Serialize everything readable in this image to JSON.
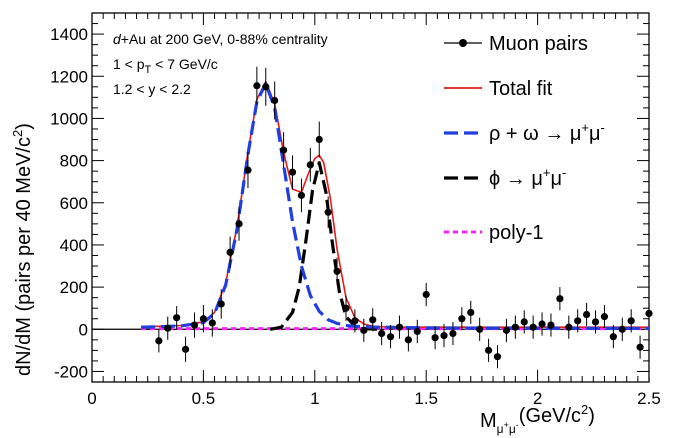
{
  "chart_data": {
    "type": "scatter",
    "title": "",
    "xlabel": "M_{μ⁺μ⁻}(GeV/c²)",
    "ylabel": "dN/dM (pairs per 40 MeV/c²)",
    "xlim": [
      0,
      2.5
    ],
    "ylim": [
      -250,
      1500
    ],
    "x_ticks": [
      "0",
      "0.5",
      "1",
      "1.5",
      "2",
      "2.5"
    ],
    "y_ticks": [
      "-200",
      "0",
      "200",
      "400",
      "600",
      "800",
      "1000",
      "1200",
      "1400"
    ],
    "annotations": {
      "line1_italic": "d",
      "line1_rest": "+Au at 200 GeV, 0-88% centrality",
      "line2_a": "1 < p",
      "line2_sub": "T",
      "line2_b": " < 7 GeV/c",
      "line3": "1.2 < y < 2.2"
    },
    "legend": {
      "placement": "top-right",
      "entries": [
        {
          "key": "data",
          "label": "Muon pairs"
        },
        {
          "key": "total",
          "label": "Total fit",
          "color": "#e41a1c"
        },
        {
          "key": "rho",
          "label": "ρ + ω → μ⁺μ⁻",
          "color": "#1f3fe0"
        },
        {
          "key": "phi",
          "label": "ϕ → μ⁺μ⁻",
          "color": "#000000"
        },
        {
          "key": "poly",
          "label": "poly-1",
          "color": "#ff22ff"
        }
      ]
    },
    "series": [
      {
        "name": "Muon pairs",
        "points": [
          {
            "x": 0.3,
            "y": -55,
            "err": 55
          },
          {
            "x": 0.34,
            "y": 5,
            "err": 55
          },
          {
            "x": 0.38,
            "y": 55,
            "err": 55
          },
          {
            "x": 0.42,
            "y": -95,
            "err": 60
          },
          {
            "x": 0.46,
            "y": 20,
            "err": 60
          },
          {
            "x": 0.5,
            "y": 50,
            "err": 65
          },
          {
            "x": 0.54,
            "y": 30,
            "err": 65
          },
          {
            "x": 0.58,
            "y": 120,
            "err": 70
          },
          {
            "x": 0.62,
            "y": 365,
            "err": 75
          },
          {
            "x": 0.66,
            "y": 500,
            "err": 80
          },
          {
            "x": 0.7,
            "y": 755,
            "err": 85
          },
          {
            "x": 0.74,
            "y": 1155,
            "err": 90
          },
          {
            "x": 0.78,
            "y": 1150,
            "err": 90
          },
          {
            "x": 0.82,
            "y": 1085,
            "err": 90
          },
          {
            "x": 0.86,
            "y": 850,
            "err": 85
          },
          {
            "x": 0.9,
            "y": 745,
            "err": 80
          },
          {
            "x": 0.94,
            "y": 635,
            "err": 80
          },
          {
            "x": 0.98,
            "y": 780,
            "err": 80
          },
          {
            "x": 1.02,
            "y": 900,
            "err": 85
          },
          {
            "x": 1.06,
            "y": 555,
            "err": 75
          },
          {
            "x": 1.1,
            "y": 275,
            "err": 65
          },
          {
            "x": 1.14,
            "y": 100,
            "err": 60
          },
          {
            "x": 1.18,
            "y": 40,
            "err": 55
          },
          {
            "x": 1.22,
            "y": -5,
            "err": 55
          },
          {
            "x": 1.26,
            "y": 45,
            "err": 55
          },
          {
            "x": 1.3,
            "y": -20,
            "err": 55
          },
          {
            "x": 1.34,
            "y": -35,
            "err": 55
          },
          {
            "x": 1.38,
            "y": 10,
            "err": 55
          },
          {
            "x": 1.42,
            "y": -50,
            "err": 55
          },
          {
            "x": 1.46,
            "y": -10,
            "err": 55
          },
          {
            "x": 1.5,
            "y": 165,
            "err": 55
          },
          {
            "x": 1.54,
            "y": -40,
            "err": 55
          },
          {
            "x": 1.58,
            "y": -30,
            "err": 55
          },
          {
            "x": 1.62,
            "y": -20,
            "err": 55
          },
          {
            "x": 1.66,
            "y": 50,
            "err": 55
          },
          {
            "x": 1.7,
            "y": 80,
            "err": 55
          },
          {
            "x": 1.74,
            "y": 0,
            "err": 55
          },
          {
            "x": 1.78,
            "y": -100,
            "err": 55
          },
          {
            "x": 1.82,
            "y": -130,
            "err": 55
          },
          {
            "x": 1.86,
            "y": -5,
            "err": 55
          },
          {
            "x": 1.9,
            "y": 10,
            "err": 55
          },
          {
            "x": 1.94,
            "y": 35,
            "err": 55
          },
          {
            "x": 1.98,
            "y": 10,
            "err": 55
          },
          {
            "x": 2.02,
            "y": 25,
            "err": 55
          },
          {
            "x": 2.06,
            "y": 20,
            "err": 55
          },
          {
            "x": 2.1,
            "y": 145,
            "err": 55
          },
          {
            "x": 2.14,
            "y": 10,
            "err": 55
          },
          {
            "x": 2.18,
            "y": 40,
            "err": 55
          },
          {
            "x": 2.22,
            "y": 70,
            "err": 55
          },
          {
            "x": 2.26,
            "y": 35,
            "err": 55
          },
          {
            "x": 2.3,
            "y": 60,
            "err": 55
          },
          {
            "x": 2.34,
            "y": -35,
            "err": 55
          },
          {
            "x": 2.38,
            "y": 0,
            "err": 55
          },
          {
            "x": 2.42,
            "y": 40,
            "err": 55
          },
          {
            "x": 2.46,
            "y": -85,
            "err": 55
          },
          {
            "x": 2.5,
            "y": 75,
            "err": 55
          }
        ]
      },
      {
        "name": "Total fit",
        "color": "#e41a1c",
        "x": [
          0.22,
          0.3,
          0.4,
          0.5,
          0.55,
          0.6,
          0.65,
          0.7,
          0.74,
          0.78,
          0.82,
          0.86,
          0.9,
          0.94,
          0.97,
          1.0,
          1.02,
          1.04,
          1.07,
          1.1,
          1.14,
          1.18,
          1.22,
          1.26,
          1.3,
          1.4,
          1.6,
          2.0,
          2.5
        ],
        "y": [
          12,
          14,
          18,
          35,
          80,
          220,
          480,
          840,
          1090,
          1175,
          1070,
          840,
          665,
          650,
          735,
          810,
          825,
          790,
          620,
          380,
          150,
          55,
          25,
          15,
          12,
          10,
          10,
          10,
          10
        ]
      },
      {
        "name": "ρ + ω → μ⁺μ⁻",
        "color": "#1f3fe0",
        "x": [
          0.22,
          0.3,
          0.4,
          0.5,
          0.55,
          0.6,
          0.65,
          0.7,
          0.74,
          0.78,
          0.82,
          0.86,
          0.9,
          0.94,
          0.98,
          1.02,
          1.06,
          1.1,
          1.14,
          1.18,
          1.22,
          1.26,
          1.3,
          1.4,
          1.6,
          2.0,
          2.5
        ],
        "y": [
          10,
          12,
          16,
          32,
          75,
          210,
          470,
          830,
          1080,
          1165,
          1050,
          780,
          510,
          300,
          160,
          85,
          45,
          28,
          18,
          14,
          12,
          10,
          10,
          8,
          6,
          5,
          4
        ]
      },
      {
        "name": "ϕ → μ⁺μ⁻",
        "color": "#000000",
        "x": [
          0.8,
          0.85,
          0.9,
          0.93,
          0.96,
          0.99,
          1.02,
          1.05,
          1.08,
          1.11,
          1.14,
          1.18,
          1.22,
          1.3
        ],
        "y": [
          0,
          10,
          80,
          200,
          420,
          660,
          790,
          650,
          400,
          180,
          60,
          15,
          3,
          0
        ]
      },
      {
        "name": "poly-1",
        "color": "#ff22ff",
        "x": [
          0.22,
          2.5
        ],
        "y": [
          3,
          3
        ]
      }
    ]
  }
}
